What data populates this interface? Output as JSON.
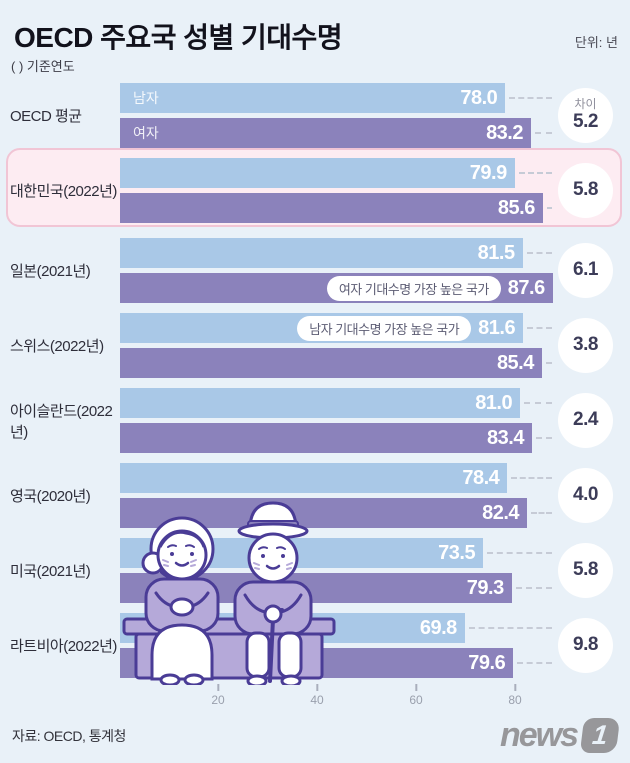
{
  "header": {
    "title": "OECD 주요국 성별 기대수명",
    "unit": "단위: 년",
    "note": "( ) 기준연도"
  },
  "chart_data": {
    "type": "bar",
    "orientation": "horizontal",
    "title": "OECD 주요국 성별 기대수명",
    "unit_label": "단위: 년",
    "series_names": [
      "남자",
      "여자"
    ],
    "xticks": [
      "20",
      "40",
      "60",
      "80"
    ],
    "xlim": [
      0,
      90
    ],
    "grid": false,
    "rows": [
      {
        "country": "OECD 평균",
        "male": 78.0,
        "female": 83.2,
        "diff": 5.2,
        "male_display": "78.0",
        "female_display": "83.2",
        "diff_display": "5.2",
        "male_label": "남자",
        "female_label": "여자",
        "diff_label": "차이"
      },
      {
        "country": "대한민국(2022년)",
        "male": 79.9,
        "female": 85.6,
        "diff": 5.8,
        "male_display": "79.9",
        "female_display": "85.6",
        "diff_display": "5.8",
        "highlighted": true
      },
      {
        "country": "일본(2021년)",
        "male": 81.5,
        "female": 87.6,
        "diff": 6.1,
        "male_display": "81.5",
        "female_display": "87.6",
        "diff_display": "6.1",
        "female_annotation": "여자 기대수명 가장 높은 국가"
      },
      {
        "country": "스위스(2022년)",
        "male": 81.6,
        "female": 85.4,
        "diff": 3.8,
        "male_display": "81.6",
        "female_display": "85.4",
        "diff_display": "3.8",
        "male_annotation": "남자 기대수명 가장 높은 국가"
      },
      {
        "country": "아이슬란드(2022년)",
        "male": 81.0,
        "female": 83.4,
        "diff": 2.4,
        "male_display": "81.0",
        "female_display": "83.4",
        "diff_display": "2.4"
      },
      {
        "country": "영국(2020년)",
        "male": 78.4,
        "female": 82.4,
        "diff": 4.0,
        "male_display": "78.4",
        "female_display": "82.4",
        "diff_display": "4.0"
      },
      {
        "country": "미국(2021년)",
        "male": 73.5,
        "female": 79.3,
        "diff": 5.8,
        "male_display": "73.5",
        "female_display": "79.3",
        "diff_display": "5.8"
      },
      {
        "country": "라트비아(2022년)",
        "male": 69.8,
        "female": 79.6,
        "diff": 9.8,
        "male_display": "69.8",
        "female_display": "79.6",
        "diff_display": "9.8"
      }
    ]
  },
  "colors": {
    "male_bar": "#a9c8e7",
    "female_bar": "#8b82bb",
    "background": "#e9f1f8",
    "highlight_fill": "#fdecf2",
    "highlight_border": "#f1c5d5"
  },
  "footer": {
    "source": "자료: OECD, 통계청",
    "logo_text": "news",
    "logo_badge": "1"
  }
}
